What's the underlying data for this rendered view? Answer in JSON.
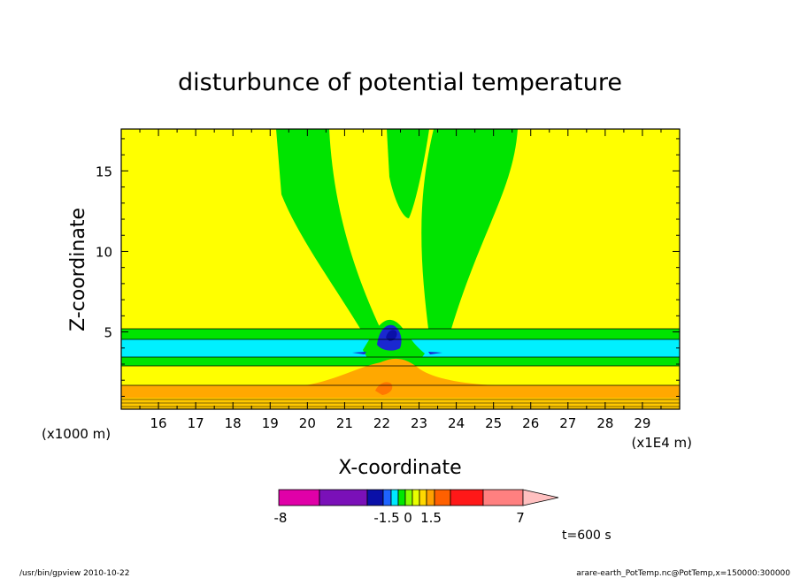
{
  "chart_data": {
    "type": "heatmap",
    "title": "disturbunce of potential temperature",
    "xlabel": "X-coordinate",
    "ylabel": "Z-coordinate",
    "x_unit_left": "(x1000 m)",
    "x_unit_right": "(x1E4 m)",
    "xlim": [
      15.0,
      30.0
    ],
    "ylim": [
      0.2,
      17.6
    ],
    "x_ticks": [
      16,
      17,
      18,
      19,
      20,
      21,
      22,
      23,
      24,
      25,
      26,
      27,
      28,
      29
    ],
    "y_ticks": [
      5,
      10,
      15
    ],
    "colorbar": {
      "levels": [
        -8,
        -1.5,
        0,
        1.5,
        7
      ],
      "labels": [
        "-8",
        "-1.5",
        "0",
        "1.5",
        "7"
      ],
      "colors": [
        "#e000a8",
        "#7a10b8",
        "#0a10a8",
        "#1e64ff",
        "#00e8ff",
        "#00e800",
        "#88ff00",
        "#e8ff00",
        "#ffd800",
        "#ffa000",
        "#ff6000",
        "#ff1818",
        "#ff8080",
        "#ffc0c0"
      ]
    },
    "fields": {
      "background": "#ffff00",
      "plume": "#00e400",
      "layer_light_blue": "#00f0ff",
      "core_dark_blue": "#1a28d0",
      "warm_orange": "#ffa800",
      "warm_light_orange": "#ffc800"
    },
    "annotation": "t=600 s"
  },
  "footer": {
    "left": "/usr/bin/gpview   2010-10-22",
    "right": "arare-earth_PotTemp.nc@PotTemp,x=150000:300000"
  }
}
